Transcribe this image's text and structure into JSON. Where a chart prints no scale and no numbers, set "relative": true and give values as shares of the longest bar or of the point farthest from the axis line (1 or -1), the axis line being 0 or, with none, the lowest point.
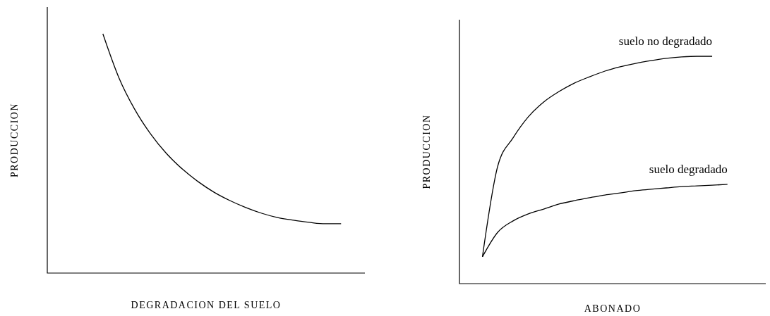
{
  "chart_data": [
    {
      "type": "line",
      "relative": true,
      "xlabel": "DEGRADACION DEL SUELO",
      "ylabel": "PRODUCCION",
      "categories": [
        null,
        null,
        null,
        null,
        null,
        null,
        null,
        null,
        null,
        null,
        null,
        null,
        null,
        null,
        null,
        null,
        null,
        null,
        null,
        null
      ],
      "series": [
        {
          "color": "#000000",
          "values": [
            null,
            null,
            null,
            1.0,
            0.818,
            0.685,
            0.582,
            0.5,
            0.435,
            0.382,
            0.338,
            0.303,
            0.274,
            0.25,
            0.232,
            0.221,
            0.212,
            0.206,
            0.206,
            null
          ]
        }
      ]
    },
    {
      "type": "line",
      "relative": true,
      "xlabel": "ABONADO",
      "ylabel": "PRODUCCION",
      "legend": false,
      "categories": [
        null,
        null,
        null,
        null,
        null,
        null,
        null,
        null,
        null,
        null,
        null,
        null,
        null,
        null,
        null,
        null,
        null,
        null,
        null,
        null
      ],
      "series": [
        {
          "name": "suelo no degradado",
          "color": "#000000",
          "values": [
            null,
            0.118,
            0.517,
            0.641,
            0.734,
            0.799,
            0.845,
            0.882,
            0.91,
            0.935,
            0.954,
            0.969,
            0.981,
            0.991,
            0.997,
            1.0,
            1.0,
            null,
            null,
            null
          ]
        },
        {
          "name": "suelo degradado",
          "color": "#000000",
          "values": [
            null,
            0.118,
            0.226,
            0.276,
            0.307,
            0.328,
            0.35,
            0.365,
            0.378,
            0.39,
            0.399,
            0.409,
            0.415,
            0.421,
            0.427,
            0.43,
            0.433,
            0.437,
            null,
            null
          ]
        }
      ]
    }
  ]
}
